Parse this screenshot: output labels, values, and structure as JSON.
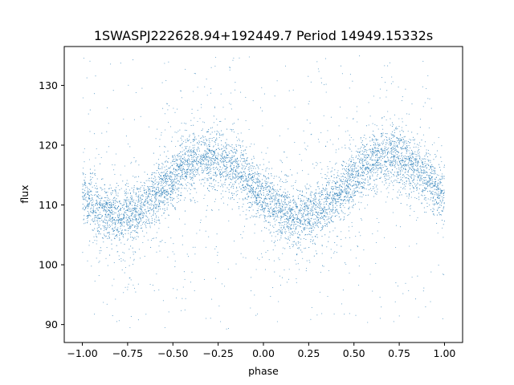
{
  "chart_data": {
    "type": "scatter",
    "title": "1SWASPJ222628.94+192449.7 Period 14949.15332s",
    "xlabel": "phase",
    "ylabel": "flux",
    "xlim": [
      -1.1,
      1.1
    ],
    "ylim": [
      87,
      136.5
    ],
    "xticks": [
      -1.0,
      -0.75,
      -0.5,
      -0.25,
      0.0,
      0.25,
      0.5,
      0.75,
      1.0
    ],
    "xtick_labels": [
      "−1.00",
      "−0.75",
      "−0.50",
      "−0.25",
      "0.00",
      "0.25",
      "0.50",
      "0.75",
      "1.00"
    ],
    "yticks": [
      90,
      100,
      110,
      120,
      130
    ],
    "ytick_labels": [
      "90",
      "100",
      "110",
      "120",
      "130"
    ],
    "grid": false,
    "legend": "none",
    "point_color": "#1f77b4",
    "model": {
      "description": "folded light curve, sinusoidal modulation repeated twice over phase -1..1",
      "mean_flux": 113.0,
      "amplitude": 5.0,
      "maximum_phases": [
        -0.3,
        0.7
      ],
      "minimum_phases": [
        -0.8,
        0.2
      ],
      "band_scatter": 2.3,
      "outlier_range": [
        89,
        135
      ]
    }
  }
}
